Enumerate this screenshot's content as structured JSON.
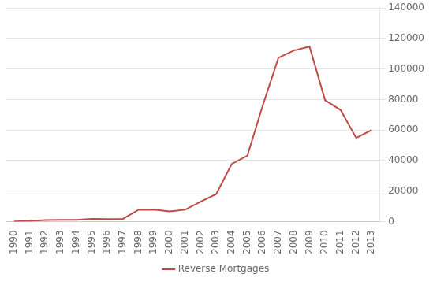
{
  "chart_data": {
    "type": "line",
    "x": [
      1990,
      1991,
      1992,
      1993,
      1994,
      1995,
      1996,
      1997,
      1998,
      1999,
      2000,
      2001,
      2002,
      2003,
      2004,
      2005,
      2006,
      2007,
      2008,
      2009,
      2010,
      2011,
      2012,
      2013
    ],
    "series": [
      {
        "name": "Reverse Mortgages",
        "color": "#BE4B48",
        "values": [
          157,
          389,
          1008,
          1145,
          1144,
          1757,
          1604,
          1832,
          7781,
          7886,
          6637,
          7781,
          13048,
          18084,
          37829,
          43131,
          76357,
          107367,
          112154,
          114692,
          79560,
          73112,
          54822,
          60091
        ]
      }
    ],
    "xlim": [
      1989.5,
      2013.5
    ],
    "xticks": [
      1990,
      1991,
      1992,
      1993,
      1994,
      1995,
      1996,
      1997,
      1998,
      1999,
      2000,
      2001,
      2002,
      2003,
      2004,
      2005,
      2006,
      2007,
      2008,
      2009,
      2010,
      2011,
      2012,
      2013
    ],
    "ylim": [
      0,
      140000
    ],
    "yticks": [
      0,
      20000,
      40000,
      60000,
      80000,
      100000,
      120000,
      140000
    ],
    "grid": "y",
    "legend": "bottom"
  }
}
